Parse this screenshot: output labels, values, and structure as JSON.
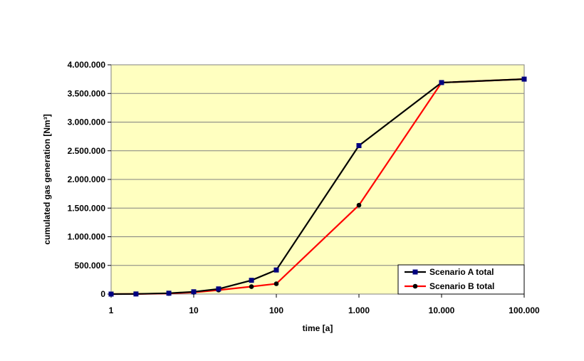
{
  "chart_data": {
    "type": "line",
    "title": "",
    "xlabel": "time [a]",
    "ylabel": "cumulated gas generation [Nm³]",
    "x_scale": "log",
    "xlim": [
      1,
      100000
    ],
    "ylim": [
      0,
      4000000
    ],
    "x_ticks": [
      1,
      10,
      100,
      1000,
      10000,
      100000
    ],
    "x_tick_labels": [
      "1",
      "10",
      "100",
      "1.000",
      "10.000",
      "100.000"
    ],
    "y_ticks": [
      0,
      500000,
      1000000,
      1500000,
      2000000,
      2500000,
      3000000,
      3500000,
      4000000
    ],
    "y_tick_labels": [
      "0",
      "500.000",
      "1.000.000",
      "1.500.000",
      "2.000.000",
      "2.500.000",
      "3.000.000",
      "3.500.000",
      "4.000.000"
    ],
    "grid": "horizontal",
    "plot_background": "#ffffc0",
    "legend_position": "bottom-right",
    "series": [
      {
        "name": "Scenario A total",
        "color": "#000000",
        "marker": "square",
        "marker_color": "#000080",
        "x": [
          1,
          2,
          5,
          10,
          20,
          50,
          100,
          1000,
          10000,
          100000
        ],
        "y": [
          0,
          2000,
          15000,
          40000,
          90000,
          240000,
          420000,
          2590000,
          3690000,
          3750000
        ]
      },
      {
        "name": "Scenario B total",
        "color": "#ff0000",
        "marker": "circle",
        "marker_color": "#000000",
        "x": [
          1,
          2,
          5,
          10,
          20,
          50,
          100,
          1000,
          10000,
          100000
        ],
        "y": [
          0,
          1000,
          10000,
          30000,
          70000,
          130000,
          180000,
          1550000,
          3690000,
          3750000
        ]
      }
    ]
  }
}
